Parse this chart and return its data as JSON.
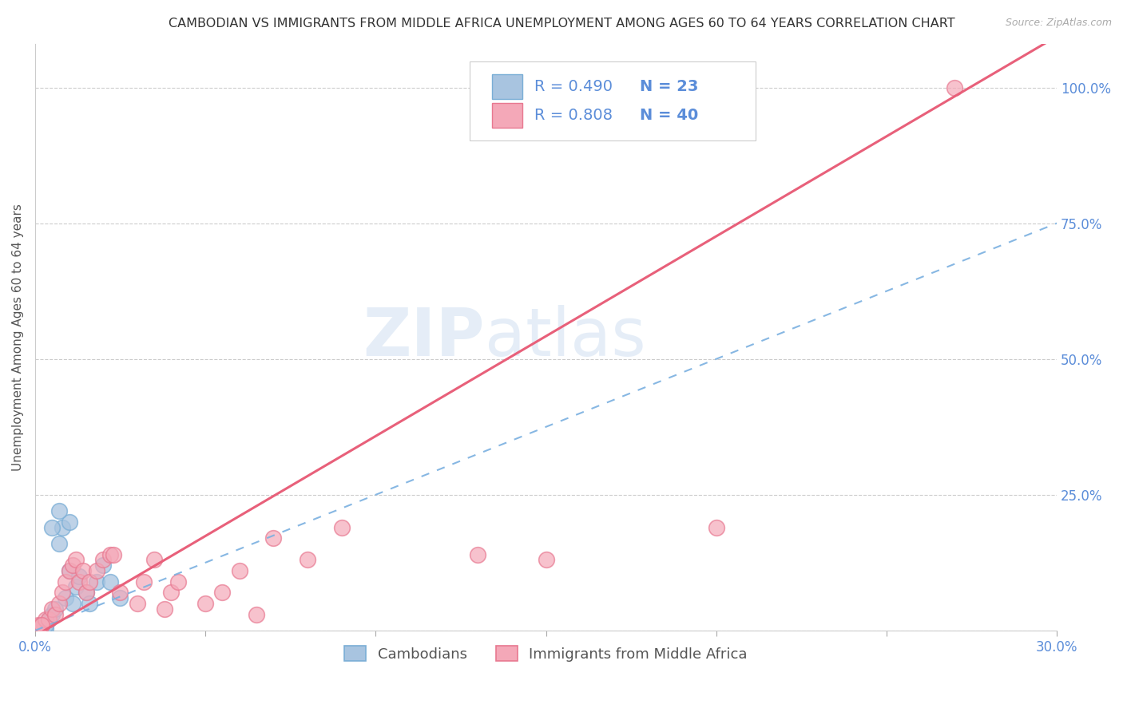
{
  "title": "CAMBODIAN VS IMMIGRANTS FROM MIDDLE AFRICA UNEMPLOYMENT AMONG AGES 60 TO 64 YEARS CORRELATION CHART",
  "source": "Source: ZipAtlas.com",
  "ylabel": "Unemployment Among Ages 60 to 64 years",
  "xlim": [
    0.0,
    0.3
  ],
  "ylim": [
    0.0,
    1.08
  ],
  "xticks": [
    0.0,
    0.05,
    0.1,
    0.15,
    0.2,
    0.25,
    0.3
  ],
  "xticklabels": [
    "0.0%",
    "",
    "",
    "",
    "",
    "",
    "30.0%"
  ],
  "yticks": [
    0.0,
    0.25,
    0.5,
    0.75,
    1.0
  ],
  "yticklabels": [
    "",
    "25.0%",
    "50.0%",
    "75.0%",
    "100.0%"
  ],
  "cambodian_color": "#a8c4e0",
  "cambodian_edge": "#7aaed6",
  "middle_africa_color": "#f4a8b8",
  "middle_africa_edge": "#e87890",
  "blue_line_color": "#7ab0e0",
  "pink_line_color": "#e8607a",
  "R_cambodian": 0.49,
  "N_cambodian": 23,
  "R_middle_africa": 0.808,
  "N_middle_africa": 40,
  "cambodian_scatter_x": [
    0.001,
    0.002,
    0.003,
    0.004,
    0.005,
    0.006,
    0.007,
    0.008,
    0.009,
    0.01,
    0.011,
    0.012,
    0.013,
    0.015,
    0.016,
    0.018,
    0.02,
    0.022,
    0.025,
    0.01,
    0.007,
    0.005,
    0.003
  ],
  "cambodian_scatter_y": [
    0.005,
    0.01,
    0.005,
    0.02,
    0.03,
    0.04,
    0.16,
    0.19,
    0.06,
    0.11,
    0.05,
    0.08,
    0.1,
    0.07,
    0.05,
    0.09,
    0.12,
    0.09,
    0.06,
    0.2,
    0.22,
    0.19,
    0.01
  ],
  "middle_africa_scatter_x": [
    0.0,
    0.001,
    0.002,
    0.003,
    0.004,
    0.005,
    0.006,
    0.007,
    0.008,
    0.009,
    0.01,
    0.011,
    0.012,
    0.013,
    0.014,
    0.015,
    0.016,
    0.018,
    0.02,
    0.022,
    0.023,
    0.025,
    0.03,
    0.032,
    0.035,
    0.038,
    0.04,
    0.042,
    0.05,
    0.055,
    0.06,
    0.065,
    0.07,
    0.08,
    0.09,
    0.13,
    0.15,
    0.2,
    0.27,
    0.002
  ],
  "middle_africa_scatter_y": [
    0.005,
    0.01,
    0.01,
    0.02,
    0.02,
    0.04,
    0.03,
    0.05,
    0.07,
    0.09,
    0.11,
    0.12,
    0.13,
    0.09,
    0.11,
    0.07,
    0.09,
    0.11,
    0.13,
    0.14,
    0.14,
    0.07,
    0.05,
    0.09,
    0.13,
    0.04,
    0.07,
    0.09,
    0.05,
    0.07,
    0.11,
    0.03,
    0.17,
    0.13,
    0.19,
    0.14,
    0.13,
    0.19,
    1.0,
    0.01
  ],
  "grid_color": "#cccccc",
  "background_color": "#ffffff",
  "watermark_text1": "ZIP",
  "watermark_text2": "atlas",
  "axis_label_color": "#5b8dd9",
  "title_color": "#333333",
  "title_fontsize": 11.5,
  "axis_fontsize": 11,
  "tick_fontsize": 12,
  "legend_fontsize": 14,
  "blue_line_slope": 2.5,
  "blue_line_intercept": 0.0,
  "pink_line_slope": 3.68,
  "pink_line_intercept": -0.01
}
